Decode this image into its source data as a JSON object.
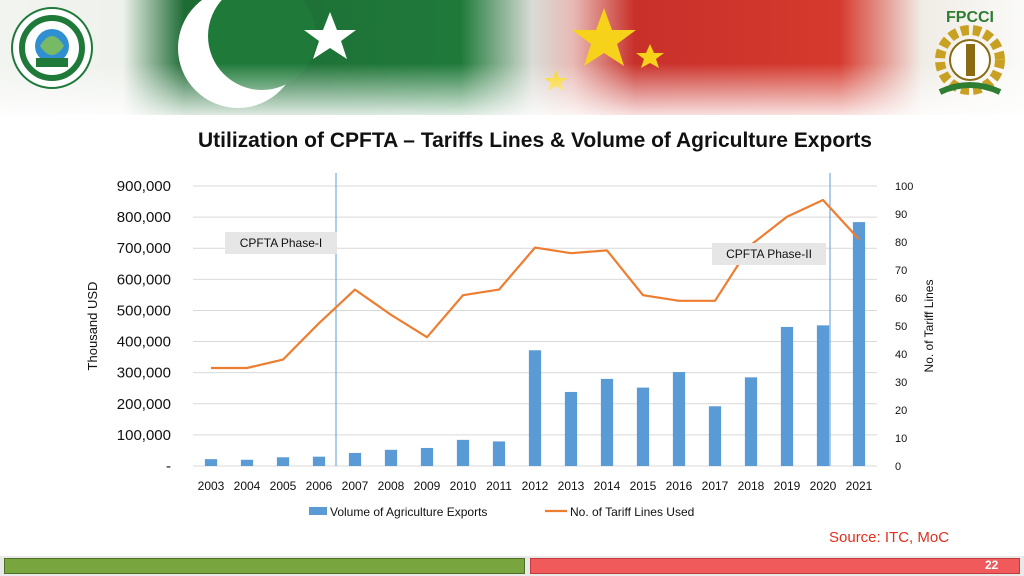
{
  "slide": {
    "title": "Utilization of CPFTA – Tariffs Lines & Volume of Agriculture Exports",
    "source": "Source: ITC, MoC",
    "page_number": "22",
    "logos": {
      "left": {
        "icon": "tdap-logo-icon",
        "text": "TRADE DEVELOPMENT AUTHORITY OF PAKISTAN",
        "short": "TDAP"
      },
      "right": {
        "icon": "fpcci-logo-icon",
        "text": "FPCCI"
      }
    },
    "banner_colors": {
      "pakistan_green": "#1f7a3a",
      "china_red": "#d63a2e",
      "star": "#f7d21a"
    }
  },
  "chart_data": {
    "type": "bar",
    "title": "Utilization of CPFTA – Tariffs Lines & Volume of Agriculture Exports",
    "categories": [
      "2003",
      "2004",
      "2005",
      "2006",
      "2007",
      "2008",
      "2009",
      "2010",
      "2011",
      "2012",
      "2013",
      "2014",
      "2015",
      "2016",
      "2017",
      "2018",
      "2019",
      "2020",
      "2021"
    ],
    "series": [
      {
        "name": "Volume of Agriculture Exports",
        "type": "bar",
        "axis": "left",
        "color": "#5b9bd5",
        "values": [
          22000,
          20000,
          28000,
          30000,
          42000,
          52000,
          58000,
          84000,
          79000,
          372000,
          238000,
          280000,
          252000,
          302000,
          192000,
          285000,
          447000,
          452000,
          784000
        ]
      },
      {
        "name": "No. of Tariff Lines Used",
        "type": "line",
        "axis": "right",
        "color": "#ed7d31",
        "values": [
          35,
          35,
          38,
          51,
          63,
          54,
          46,
          61,
          63,
          78,
          76,
          77,
          61,
          59,
          59,
          79,
          89,
          95,
          81
        ]
      }
    ],
    "ylabel": "Thousand USD",
    "y2label": "No. of Tariff Lines",
    "ylim": [
      0,
      900000
    ],
    "y2lim": [
      0,
      100
    ],
    "yticks": [
      "-",
      "100,000",
      "200,000",
      "300,000",
      "400,000",
      "500,000",
      "600,000",
      "700,000",
      "800,000",
      "900,000"
    ],
    "y2ticks": [
      "0",
      "10",
      "20",
      "30",
      "40",
      "50",
      "60",
      "70",
      "80",
      "90",
      "100"
    ],
    "grid": true,
    "legend": "bottom",
    "annotations": [
      {
        "label": "CPFTA Phase-I",
        "x": "2007"
      },
      {
        "label": "CPFTA Phase-II",
        "x": "2020"
      }
    ]
  }
}
